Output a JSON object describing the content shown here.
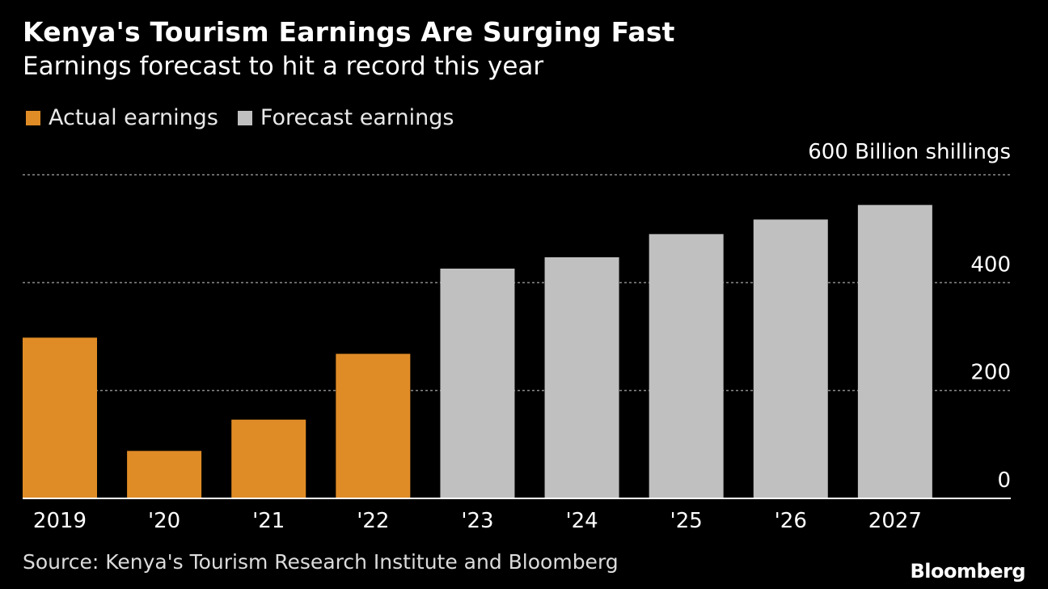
{
  "title": "Kenya's Tourism Earnings Are Surging Fast",
  "subtitle": "Earnings forecast to hit a record this year",
  "legend": [
    {
      "label": "Actual earnings",
      "color": "#e08c26"
    },
    {
      "label": "Forecast earnings",
      "color": "#c0c0c0"
    }
  ],
  "source": "Source: Kenya's Tourism Research Institute and Bloomberg",
  "brand": "Bloomberg",
  "chart_data": {
    "type": "bar",
    "categories": [
      "2019",
      "'20",
      "'21",
      "'22",
      "'23",
      "'24",
      "'25",
      "'26",
      "2027"
    ],
    "series": [
      {
        "name": "Actual earnings",
        "values": [
          298,
          88,
          146,
          268,
          null,
          null,
          null,
          null,
          null
        ]
      },
      {
        "name": "Forecast earnings",
        "values": [
          null,
          null,
          null,
          null,
          426,
          447,
          490,
          517,
          544
        ]
      }
    ],
    "unit_label": "600 Billion shillings",
    "yticks": [
      {
        "value": 0,
        "label": "0"
      },
      {
        "value": 200,
        "label": "200"
      },
      {
        "value": 400,
        "label": "400"
      }
    ],
    "ylim": [
      0,
      600
    ],
    "grid": true,
    "axis_side": "right",
    "legend_position": "top-left",
    "colors": {
      "actual": "#e08c26",
      "forecast": "#c0c0c0",
      "grid": "#8a8a8a",
      "axis": "#ffffff",
      "text": "#ffffff"
    }
  }
}
